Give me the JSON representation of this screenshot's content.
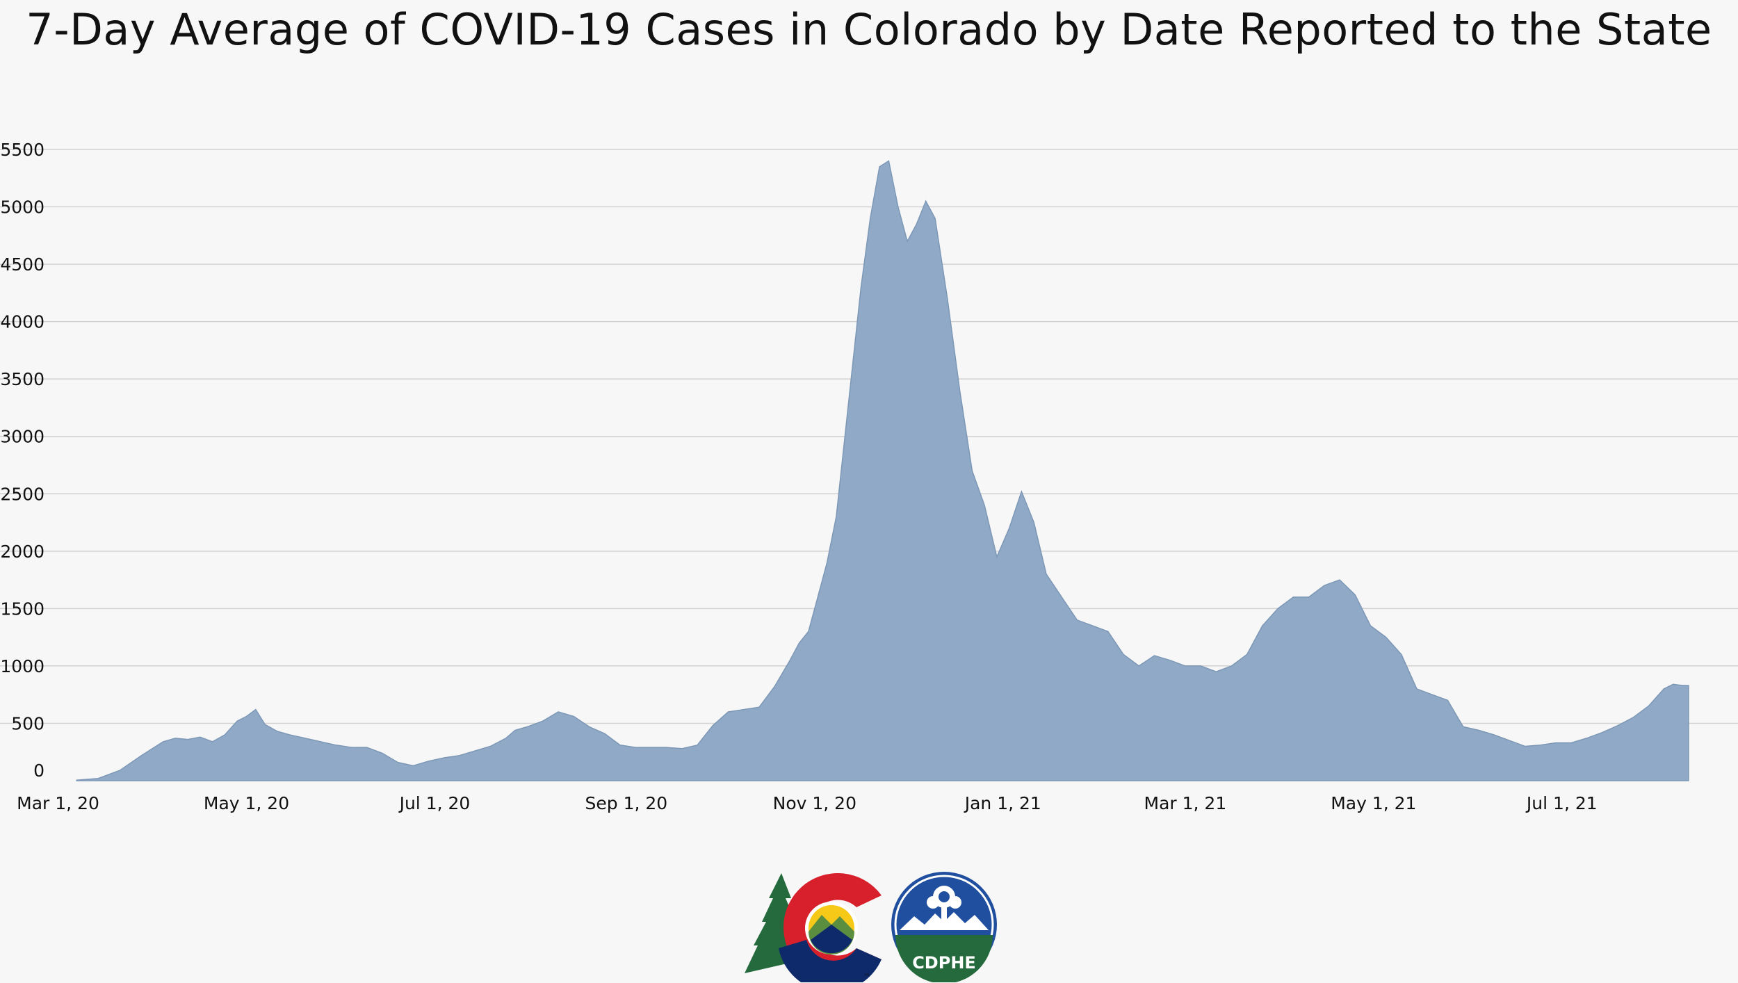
{
  "chart_data": {
    "type": "area",
    "title": "7-Day Average of COVID-19 Cases in Colorado by Date Reported to the State",
    "xlabel": "",
    "ylabel": "",
    "ylim": [
      0,
      5500
    ],
    "yticks": [
      "0",
      "500",
      "1000",
      "1500",
      "2000",
      "2500",
      "3000",
      "3500",
      "4000",
      "4500",
      "5000",
      "5500"
    ],
    "xticks": [
      {
        "label": "Mar 1, 20",
        "date": "2020-03-01"
      },
      {
        "label": "May 1, 20",
        "date": "2020-05-01"
      },
      {
        "label": "Jul 1, 20",
        "date": "2020-07-01"
      },
      {
        "label": "Sep 1, 20",
        "date": "2020-09-01"
      },
      {
        "label": "Nov 1, 20",
        "date": "2020-11-01"
      },
      {
        "label": "Jan 1, 21",
        "date": "2021-01-01"
      },
      {
        "label": "Mar 1, 21",
        "date": "2021-03-01"
      },
      {
        "label": "May 1, 21",
        "date": "2021-05-01"
      },
      {
        "label": "Jul 1, 21",
        "date": "2021-07-01"
      }
    ],
    "xlim": [
      "2020-02-22",
      "2021-08-27"
    ],
    "grid": true,
    "legend": "none",
    "fill_color": "#8fa9c6",
    "line_color": "#7d98b6",
    "series": [
      {
        "x": [
          "2020-03-07",
          "2020-03-14",
          "2020-03-21",
          "2020-03-28",
          "2020-04-04",
          "2020-04-08",
          "2020-04-12",
          "2020-04-16",
          "2020-04-20",
          "2020-04-24",
          "2020-04-28",
          "2020-05-01",
          "2020-05-04",
          "2020-05-07",
          "2020-05-11",
          "2020-05-15",
          "2020-05-20",
          "2020-05-25",
          "2020-05-30",
          "2020-06-04",
          "2020-06-09",
          "2020-06-14",
          "2020-06-19",
          "2020-06-24",
          "2020-06-29",
          "2020-07-04",
          "2020-07-09",
          "2020-07-14",
          "2020-07-19",
          "2020-07-24",
          "2020-07-27",
          "2020-07-31",
          "2020-08-05",
          "2020-08-10",
          "2020-08-15",
          "2020-08-20",
          "2020-08-25",
          "2020-08-30",
          "2020-09-04",
          "2020-09-09",
          "2020-09-14",
          "2020-09-19",
          "2020-09-24",
          "2020-09-29",
          "2020-10-04",
          "2020-10-09",
          "2020-10-14",
          "2020-10-19",
          "2020-10-24",
          "2020-10-27",
          "2020-10-30",
          "2020-11-02",
          "2020-11-05",
          "2020-11-08",
          "2020-11-10",
          "2020-11-12",
          "2020-11-14",
          "2020-11-16",
          "2020-11-19",
          "2020-11-22",
          "2020-11-25",
          "2020-11-28",
          "2020-12-01",
          "2020-12-04",
          "2020-12-07",
          "2020-12-10",
          "2020-12-14",
          "2020-12-18",
          "2020-12-22",
          "2020-12-26",
          "2020-12-30",
          "2021-01-03",
          "2021-01-07",
          "2021-01-11",
          "2021-01-15",
          "2021-01-20",
          "2021-01-25",
          "2021-01-30",
          "2021-02-04",
          "2021-02-09",
          "2021-02-14",
          "2021-02-19",
          "2021-02-24",
          "2021-03-01",
          "2021-03-06",
          "2021-03-11",
          "2021-03-16",
          "2021-03-21",
          "2021-03-26",
          "2021-03-31",
          "2021-04-05",
          "2021-04-10",
          "2021-04-15",
          "2021-04-20",
          "2021-04-25",
          "2021-04-30",
          "2021-05-05",
          "2021-05-10",
          "2021-05-15",
          "2021-05-20",
          "2021-05-25",
          "2021-05-30",
          "2021-06-04",
          "2021-06-09",
          "2021-06-14",
          "2021-06-19",
          "2021-06-24",
          "2021-06-29",
          "2021-07-04",
          "2021-07-09",
          "2021-07-14",
          "2021-07-19",
          "2021-07-24",
          "2021-07-29",
          "2021-08-03",
          "2021-08-06",
          "2021-08-09",
          "2021-08-11"
        ],
        "y": [
          5,
          20,
          90,
          220,
          340,
          370,
          360,
          380,
          340,
          400,
          520,
          560,
          620,
          490,
          430,
          400,
          370,
          340,
          310,
          290,
          290,
          240,
          160,
          130,
          170,
          200,
          220,
          260,
          300,
          370,
          440,
          470,
          520,
          600,
          560,
          470,
          410,
          310,
          290,
          290,
          290,
          280,
          310,
          480,
          600,
          620,
          640,
          820,
          1050,
          1200,
          1300,
          1600,
          1900,
          2300,
          2800,
          3300,
          3800,
          4300,
          4900,
          5350,
          5400,
          5000,
          4700,
          4850,
          5050,
          4900,
          4200,
          3400,
          2700,
          2400,
          1950,
          2200,
          2520,
          2250,
          1800,
          1600,
          1400,
          1350,
          1300,
          1100,
          1000,
          1090,
          1050,
          1000,
          1000,
          950,
          1000,
          1100,
          1350,
          1500,
          1600,
          1600,
          1700,
          1750,
          1620,
          1350,
          1250,
          1100,
          800,
          750,
          700,
          470,
          440,
          400,
          350,
          300,
          310,
          330,
          330,
          370,
          420,
          480,
          550,
          650,
          800,
          840,
          830,
          830
        ]
      }
    ]
  },
  "logos": {
    "state_logo": "colorado-c-logo",
    "state_logo_mark": "™",
    "agency_logo": "cdphe-seal-logo",
    "agency_text": "CDPHE",
    "colors": {
      "green": "#256a3c",
      "red": "#d8202c",
      "navy": "#0f2a6b",
      "gold": "#f6c818",
      "blue": "#1f4f9e"
    }
  }
}
